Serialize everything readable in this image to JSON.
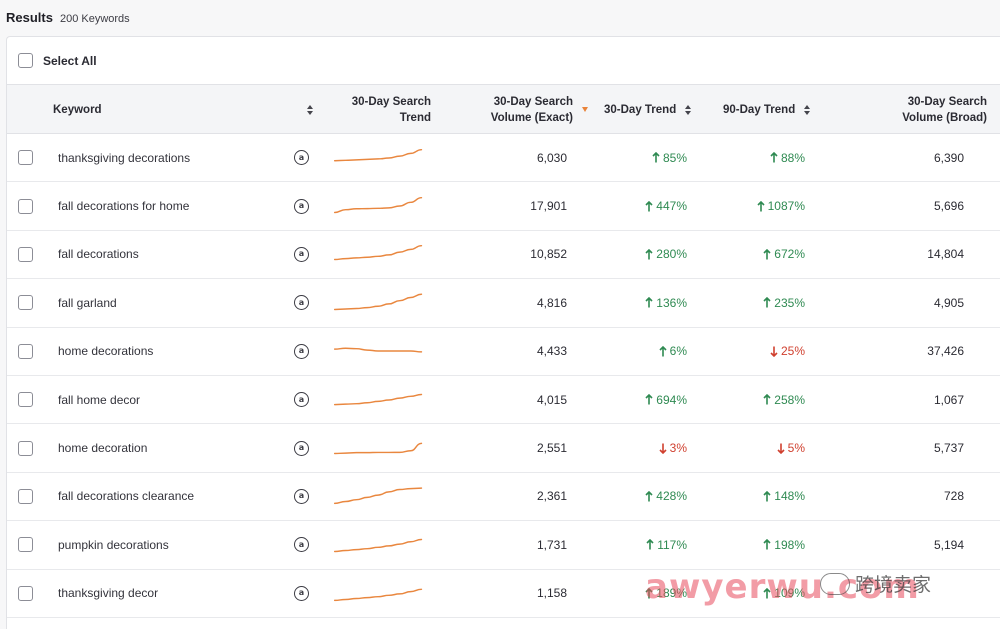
{
  "results": {
    "title": "Results",
    "count": "200 Keywords"
  },
  "select_all": {
    "label": "Select All"
  },
  "columns": {
    "keyword": "Keyword",
    "search_trend": "30-Day Search Trend",
    "volume_exact": "30-Day Search Volume (Exact)",
    "trend_30": "30-Day Trend",
    "trend_90": "90-Day Trend",
    "volume_broad": "30-Day Search Volume (Broad)"
  },
  "icons": {
    "amazon": "amazon-icon",
    "trend_up": "arrow-up-icon",
    "trend_down": "arrow-down-icon"
  },
  "colors": {
    "up": "#2f8a52",
    "down": "#d0402f",
    "sparkline": "#e9873f",
    "sort_active": "#e9833a"
  },
  "rows": [
    {
      "keyword": "thanksgiving decorations",
      "volume_exact": "6,030",
      "trend_30": "85%",
      "trend_30_dir": "up",
      "trend_90": "88%",
      "trend_90_dir": "up",
      "volume_broad": "6,390",
      "spark": [
        8,
        8.5,
        9,
        9.5,
        10,
        11,
        13,
        16,
        20
      ]
    },
    {
      "keyword": "fall decorations for home",
      "volume_exact": "17,901",
      "trend_30": "447%",
      "trend_30_dir": "up",
      "trend_90": "1087%",
      "trend_90_dir": "up",
      "volume_broad": "5,696",
      "spark": [
        4,
        7,
        8,
        8.2,
        8.5,
        9,
        11,
        15,
        20
      ]
    },
    {
      "keyword": "fall decorations",
      "volume_exact": "10,852",
      "trend_30": "280%",
      "trend_30_dir": "up",
      "trend_90": "672%",
      "trend_90_dir": "up",
      "volume_broad": "14,804",
      "spark": [
        5,
        6,
        6.8,
        7.5,
        8.5,
        10,
        13,
        16,
        20
      ]
    },
    {
      "keyword": "fall garland",
      "volume_exact": "4,816",
      "trend_30": "136%",
      "trend_30_dir": "up",
      "trend_90": "235%",
      "trend_90_dir": "up",
      "volume_broad": "4,905",
      "spark": [
        4,
        4.5,
        5,
        6,
        7.5,
        10,
        13.5,
        17,
        20.5
      ]
    },
    {
      "keyword": "home decorations",
      "volume_exact": "4,433",
      "trend_30": "6%",
      "trend_30_dir": "up",
      "trend_90": "25%",
      "trend_90_dir": "down",
      "volume_broad": "37,426",
      "spark": [
        13,
        14,
        13.5,
        12,
        11,
        11,
        11,
        11,
        10
      ]
    },
    {
      "keyword": "fall home decor",
      "volume_exact": "4,015",
      "trend_30": "694%",
      "trend_30_dir": "up",
      "trend_90": "258%",
      "trend_90_dir": "up",
      "volume_broad": "1,067",
      "spark": [
        6,
        6.5,
        7,
        8,
        9.5,
        11,
        13,
        15,
        17
      ]
    },
    {
      "keyword": "home decoration",
      "volume_exact": "2,551",
      "trend_30": "3%",
      "trend_30_dir": "down",
      "trend_90": "5%",
      "trend_90_dir": "down",
      "volume_broad": "5,737",
      "spark": [
        5,
        5.5,
        6,
        6,
        6.2,
        6.2,
        6.3,
        8,
        16
      ]
    },
    {
      "keyword": "fall decorations clearance",
      "volume_exact": "2,361",
      "trend_30": "428%",
      "trend_30_dir": "up",
      "trend_90": "148%",
      "trend_90_dir": "up",
      "volume_broad": "728",
      "spark": [
        3,
        5,
        7,
        9.5,
        12,
        15.5,
        18,
        19,
        19.5
      ]
    },
    {
      "keyword": "pumpkin decorations",
      "volume_exact": "1,731",
      "trend_30": "117%",
      "trend_30_dir": "up",
      "trend_90": "198%",
      "trend_90_dir": "up",
      "volume_broad": "5,194",
      "spark": [
        4,
        5,
        6,
        7,
        8.5,
        10,
        12,
        14.5,
        17
      ]
    },
    {
      "keyword": "thanksgiving decor",
      "volume_exact": "1,158",
      "trend_30": "189%",
      "trend_30_dir": "up",
      "trend_90": "109%",
      "trend_90_dir": "up",
      "volume_broad": "",
      "spark": [
        3,
        4,
        5,
        6,
        7,
        8.5,
        10,
        12.5,
        15
      ]
    }
  ],
  "watermark": {
    "text": "awyerwu.com",
    "cn_text": "跨境卖家"
  }
}
